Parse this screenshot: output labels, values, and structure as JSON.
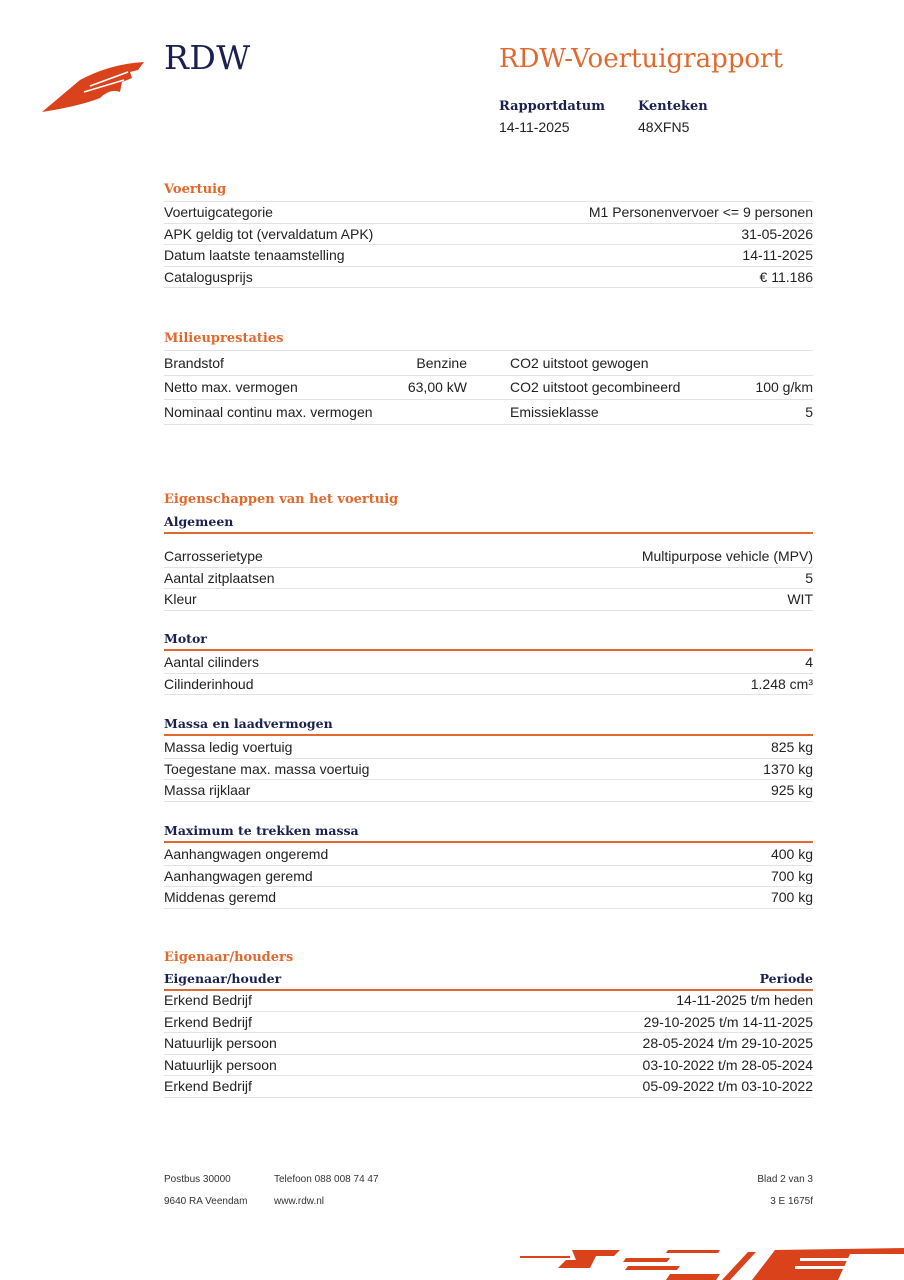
{
  "header": {
    "logo_text": "RDW",
    "title": "RDW-Voertuigrapport",
    "report_date_label": "Rapportdatum",
    "report_date": "14-11-2025",
    "plate_label": "Kenteken",
    "plate": "48XFN5"
  },
  "voertuig": {
    "heading": "Voertuig",
    "rows": [
      {
        "label": "Voertuigcategorie",
        "value": "M1 Personenvervoer <= 9 personen"
      },
      {
        "label": "APK geldig tot (vervaldatum APK)",
        "value": "31-05-2026"
      },
      {
        "label": "Datum laatste tenaamstelling",
        "value": "14-11-2025"
      },
      {
        "label": "Catalogusprijs",
        "value": "€ 11.186"
      }
    ]
  },
  "milieu": {
    "heading": "Milieuprestaties",
    "rows": [
      {
        "l1": "Brandstof",
        "v1": "Benzine",
        "l2": "CO2 uitstoot gewogen",
        "v2": ""
      },
      {
        "l1": "Netto max. vermogen",
        "v1": "63,00 kW",
        "l2": "CO2 uitstoot gecombineerd",
        "v2": "100 g/km"
      },
      {
        "l1": "Nominaal continu max. vermogen",
        "v1": "",
        "l2": "Emissieklasse",
        "v2": "5"
      }
    ]
  },
  "eigenschappen": {
    "heading": "Eigenschappen van het voertuig",
    "groups": [
      {
        "title": "Algemeen",
        "rows": [
          {
            "label": "Carrosserietype",
            "value": "Multipurpose vehicle (MPV)"
          },
          {
            "label": "Aantal zitplaatsen",
            "value": "5"
          },
          {
            "label": "Kleur",
            "value": "WIT"
          }
        ]
      },
      {
        "title": "Motor",
        "rows": [
          {
            "label": "Aantal cilinders",
            "value": "4"
          },
          {
            "label": "Cilinderinhoud",
            "value": "1.248 cm³"
          }
        ]
      },
      {
        "title": "Massa en laadvermogen",
        "rows": [
          {
            "label": "Massa ledig voertuig",
            "value": "825 kg"
          },
          {
            "label": "Toegestane max. massa voertuig",
            "value": "1370 kg"
          },
          {
            "label": "Massa rijklaar",
            "value": "925 kg"
          }
        ]
      },
      {
        "title": "Maximum te trekken massa",
        "rows": [
          {
            "label": "Aanhangwagen ongeremd",
            "value": "400 kg"
          },
          {
            "label": "Aanhangwagen geremd",
            "value": "700 kg"
          },
          {
            "label": "Middenas geremd",
            "value": "700 kg"
          }
        ]
      }
    ]
  },
  "eigenaar": {
    "heading": "Eigenaar/houders",
    "col_owner": "Eigenaar/houder",
    "col_period": "Periode",
    "rows": [
      {
        "label": "Erkend Bedrijf",
        "value": "14-11-2025 t/m heden"
      },
      {
        "label": "Erkend Bedrijf",
        "value": "29-10-2025 t/m 14-11-2025"
      },
      {
        "label": "Natuurlijk persoon",
        "value": "28-05-2024 t/m 29-10-2025"
      },
      {
        "label": "Natuurlijk persoon",
        "value": "03-10-2022 t/m 28-05-2024"
      },
      {
        "label": "Erkend Bedrijf",
        "value": "05-09-2022 t/m 03-10-2022"
      }
    ]
  },
  "footer": {
    "address1": "Postbus 30000",
    "address2": "9640 RA Veendam",
    "phone": "Telefoon 088 008 74 47",
    "web": "www.rdw.nl",
    "page": "Blad 2 van 3",
    "code": "3 E 1675f"
  },
  "colors": {
    "accent": "#e2692e",
    "navy": "#1b2050",
    "logo_red": "#d9421a"
  }
}
